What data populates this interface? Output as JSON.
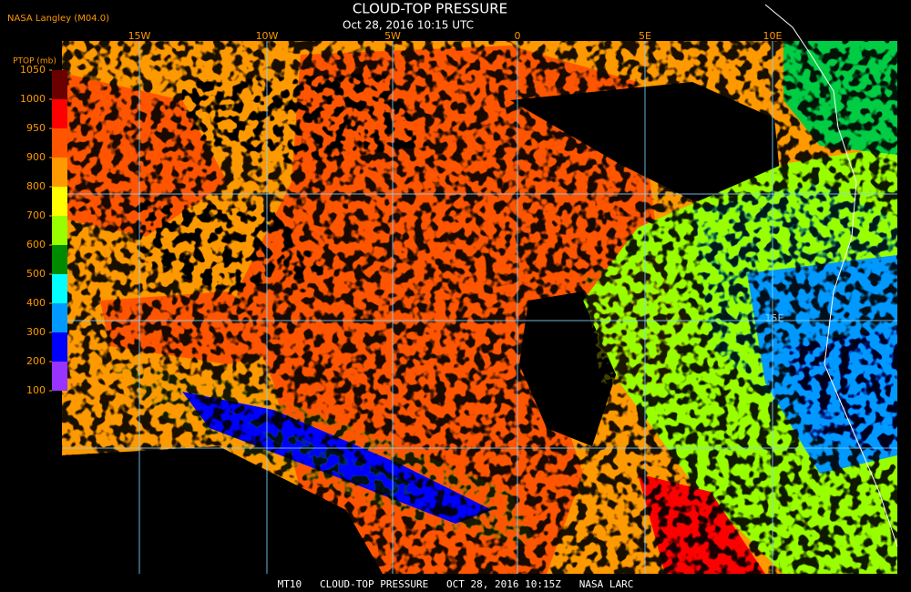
{
  "header": {
    "source": "NASA Langley (M04.0)",
    "title": "CLOUD-TOP PRESSURE",
    "subtitle": "Oct 28, 2016 10:15 UTC"
  },
  "map": {
    "longitude_labels": [
      "15W",
      "10W",
      "5W",
      "0",
      "5E",
      "10E"
    ],
    "grid_label": "15E"
  },
  "colorbar": {
    "title": "PTOP (mb)",
    "ticks": [
      1050,
      1000,
      950,
      900,
      800,
      700,
      600,
      500,
      400,
      300,
      200,
      100
    ],
    "colors": [
      "#6a0000",
      "#ff0000",
      "#ff5500",
      "#ff9900",
      "#ffff00",
      "#99ff00",
      "#008a00",
      "#00ffff",
      "#0099ff",
      "#0000ff",
      "#9933ff"
    ]
  },
  "footer": {
    "text": "MT10   CLOUD-TOP PRESSURE   OCT 28, 2016 10:15Z   NASA LARC"
  }
}
